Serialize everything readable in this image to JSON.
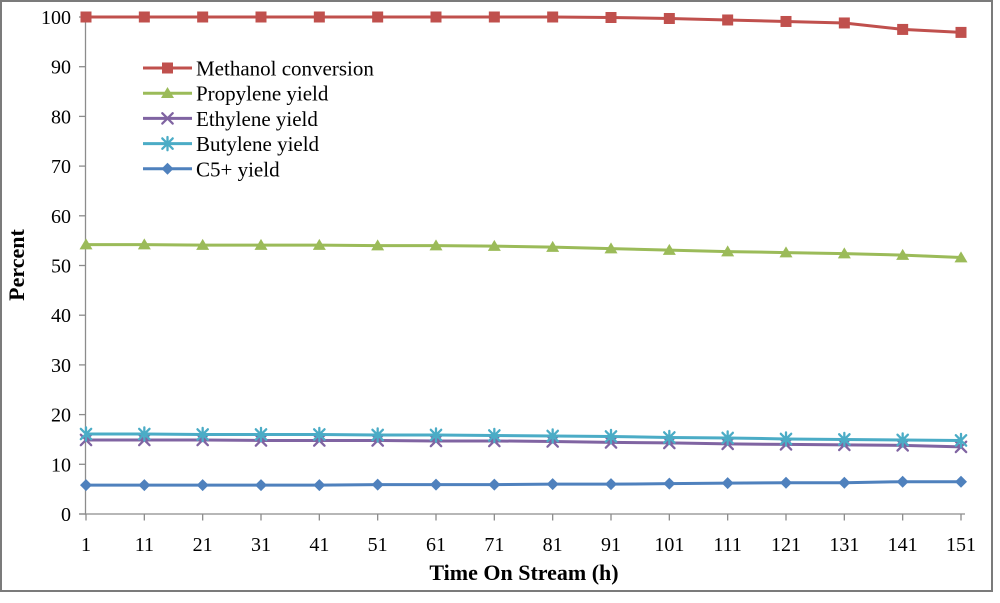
{
  "chart_data": {
    "type": "line",
    "title": "",
    "xlabel": "Time On Stream (h)",
    "ylabel": "Percent",
    "xlim": [
      1,
      151
    ],
    "ylim": [
      0,
      100
    ],
    "x_ticks": [
      1,
      11,
      21,
      31,
      41,
      51,
      61,
      71,
      81,
      91,
      101,
      111,
      121,
      131,
      141,
      151
    ],
    "y_ticks": [
      0,
      10,
      20,
      30,
      40,
      50,
      60,
      70,
      80,
      90,
      100
    ],
    "grid": false,
    "legend_position": "inside-top-left",
    "x": [
      1,
      11,
      21,
      31,
      41,
      51,
      61,
      71,
      81,
      91,
      101,
      111,
      121,
      131,
      141,
      151
    ],
    "series": [
      {
        "name": "Methanol conversion",
        "marker": "square",
        "color": "#C0504D",
        "values": [
          100,
          100,
          100,
          100,
          100,
          100,
          100,
          100,
          100,
          99.9,
          99.7,
          99.4,
          99.1,
          98.8,
          97.5,
          96.9
        ]
      },
      {
        "name": "Propylene yield",
        "marker": "triangle",
        "color": "#9BBB59",
        "values": [
          54.2,
          54.2,
          54.1,
          54.1,
          54.1,
          54.0,
          54.0,
          53.9,
          53.7,
          53.4,
          53.1,
          52.8,
          52.6,
          52.4,
          52.1,
          51.6
        ]
      },
      {
        "name": "Ethylene yield",
        "marker": "x",
        "color": "#8064A2",
        "values": [
          14.9,
          14.9,
          14.9,
          14.8,
          14.8,
          14.8,
          14.7,
          14.7,
          14.6,
          14.4,
          14.3,
          14.1,
          14.0,
          13.9,
          13.8,
          13.5
        ]
      },
      {
        "name": "Butylene yield",
        "marker": "asterisk",
        "color": "#4BACC6",
        "values": [
          16.1,
          16.1,
          16.0,
          16.0,
          16.0,
          15.9,
          15.9,
          15.8,
          15.7,
          15.6,
          15.4,
          15.3,
          15.1,
          15.0,
          14.9,
          14.8
        ]
      },
      {
        "name": "C5+ yield",
        "marker": "diamond",
        "color": "#4F81BD",
        "values": [
          5.8,
          5.8,
          5.8,
          5.8,
          5.8,
          5.9,
          5.9,
          5.9,
          6.0,
          6.0,
          6.1,
          6.2,
          6.3,
          6.3,
          6.5,
          6.5
        ]
      }
    ]
  },
  "style": {
    "axis_color": "#8c8c8c",
    "frame_color": "#7b7b7b",
    "text_color": "#000000",
    "background": "#ffffff"
  }
}
